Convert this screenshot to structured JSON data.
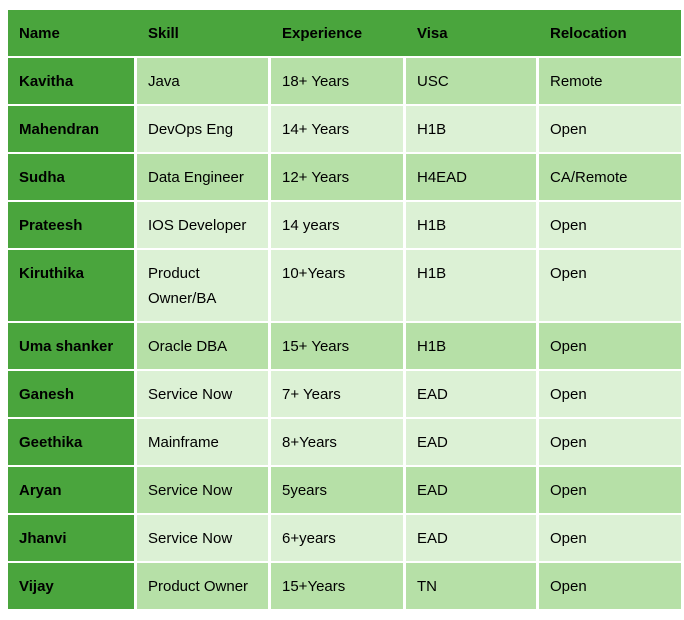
{
  "colors": {
    "header_bg": "#4aa53d",
    "name_column_bg": "#4aa53d",
    "row_light": "#dcf1d5",
    "row_medium": "#b6e0a7",
    "grid_line": "#ffffff",
    "text": "#000000"
  },
  "table": {
    "columns": [
      "Name",
      "Skill",
      "Experience",
      "Visa",
      "Relocation"
    ],
    "rows": [
      {
        "name": "Kavitha",
        "skill": "Java",
        "experience": "18+ Years",
        "visa": "USC",
        "relocation": "Remote",
        "shade": "medium"
      },
      {
        "name": "Mahendran",
        "skill": "DevOps Eng",
        "experience": "14+ Years",
        "visa": "H1B",
        "relocation": "Open",
        "shade": "light"
      },
      {
        "name": "Sudha",
        "skill": "Data Engineer",
        "experience": "12+ Years",
        "visa": "H4EAD",
        "relocation": "CA/Remote",
        "shade": "medium"
      },
      {
        "name": "Prateesh",
        "skill": "IOS Developer",
        "experience": "14 years",
        "visa": "H1B",
        "relocation": "Open",
        "shade": "light"
      },
      {
        "name": "Kiruthika",
        "skill": "Product Owner/BA",
        "experience": "10+Years",
        "visa": "H1B",
        "relocation": "Open",
        "shade": "light"
      },
      {
        "name": "Uma shanker",
        "skill": "Oracle DBA",
        "experience": "15+ Years",
        "visa": "H1B",
        "relocation": "Open",
        "shade": "medium"
      },
      {
        "name": "Ganesh",
        "skill": "Service Now",
        "experience": "7+ Years",
        "visa": "EAD",
        "relocation": "Open",
        "shade": "light"
      },
      {
        "name": "Geethika",
        "skill": "Mainframe",
        "experience": "8+Years",
        "visa": "EAD",
        "relocation": "Open",
        "shade": "light"
      },
      {
        "name": "Aryan",
        "skill": "Service Now",
        "experience": "5years",
        "visa": "EAD",
        "relocation": "Open",
        "shade": "medium"
      },
      {
        "name": "Jhanvi",
        "skill": "Service Now",
        "experience": "6+years",
        "visa": "EAD",
        "relocation": "Open",
        "shade": "light"
      },
      {
        "name": "Vijay",
        "skill": "Product Owner",
        "experience": "15+Years",
        "visa": "TN",
        "relocation": "Open",
        "shade": "medium"
      }
    ]
  }
}
